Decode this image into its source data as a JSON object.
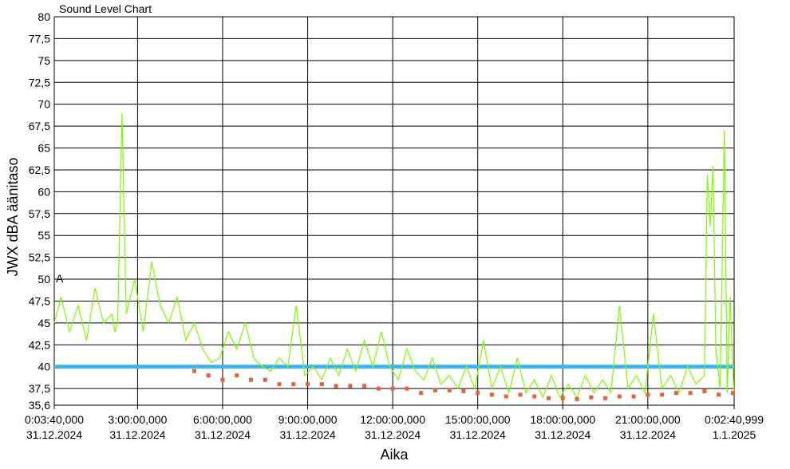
{
  "chart_data": {
    "type": "line",
    "title": "Sound Level Chart",
    "xlabel": "Aika",
    "ylabel": "JWX dBA äänitaso",
    "ylim": [
      35.6,
      80
    ],
    "x_hours_range": [
      0.06111,
      24.04472
    ],
    "y_ticks": [
      "35,6",
      "37,5",
      "40",
      "42,5",
      "45",
      "47,5",
      "50",
      "52,5",
      "55",
      "57,5",
      "60",
      "62,5",
      "65",
      "67,5",
      "70",
      "72,5",
      "75",
      "77,5",
      "80"
    ],
    "y_tick_values": [
      35.6,
      37.5,
      40,
      42.5,
      45,
      47.5,
      50,
      52.5,
      55,
      57.5,
      60,
      62.5,
      65,
      67.5,
      70,
      72.5,
      75,
      77.5,
      80
    ],
    "x_ticks": [
      {
        "hours": 0.06111,
        "time": "0:03:40,000",
        "date": "31.12.2024"
      },
      {
        "hours": 3,
        "time": "3:00:00,000",
        "date": "31.12.2024"
      },
      {
        "hours": 6,
        "time": "6:00:00,000",
        "date": "31.12.2024"
      },
      {
        "hours": 9,
        "time": "9:00:00,000",
        "date": "31.12.2024"
      },
      {
        "hours": 12,
        "time": "12:00:00,000",
        "date": "31.12.2024"
      },
      {
        "hours": 15,
        "time": "15:00:00,000",
        "date": "31.12.2024"
      },
      {
        "hours": 18,
        "time": "18:00:00,000",
        "date": "31.12.2024"
      },
      {
        "hours": 21,
        "time": "21:00:00,000",
        "date": "31.12.2024"
      },
      {
        "hours": 24.04472,
        "time": "0:02:40,999",
        "date": "1.1.2025"
      }
    ],
    "grid": true,
    "reference_line": {
      "y": 40,
      "color": "#40b4e8"
    },
    "series": [
      {
        "color": "#7cfc00",
        "x": [
          0.06,
          0.3,
          0.6,
          0.9,
          1.2,
          1.5,
          1.8,
          2.1,
          2.2,
          2.3,
          2.45,
          2.6,
          2.9,
          3.2,
          3.5,
          3.8,
          4.1,
          4.4,
          4.7,
          5.0,
          5.3,
          5.6,
          5.9,
          6.2,
          6.5,
          6.8,
          7.1,
          7.4,
          7.7,
          8.0,
          8.3,
          8.6,
          8.9,
          9.2,
          9.5,
          9.8,
          10.1,
          10.4,
          10.7,
          11.0,
          11.3,
          11.6,
          11.9,
          12.2,
          12.5,
          12.8,
          13.1,
          13.4,
          13.7,
          14.0,
          14.3,
          14.6,
          14.9,
          15.2,
          15.5,
          15.8,
          16.1,
          16.4,
          16.7,
          17.0,
          17.3,
          17.6,
          17.9,
          18.2,
          18.5,
          18.8,
          19.1,
          19.4,
          19.7,
          20.0,
          20.3,
          20.6,
          20.9,
          21.2,
          21.5,
          21.8,
          22.1,
          22.4,
          22.7,
          23.0,
          23.1,
          23.2,
          23.3,
          23.4,
          23.55,
          23.7,
          23.8,
          23.9,
          24.04
        ],
        "y": [
          45,
          48,
          44,
          47,
          43,
          49,
          45,
          46,
          44,
          45,
          69,
          46,
          50,
          44,
          52,
          47,
          45,
          48,
          43,
          45,
          42,
          40.5,
          41,
          44,
          42,
          45,
          41,
          40,
          39.5,
          41,
          40,
          47,
          39,
          40,
          38.5,
          41,
          39,
          42,
          39.5,
          43,
          40,
          44,
          40,
          38.5,
          42,
          39.5,
          38.5,
          41,
          38,
          39,
          37.5,
          40,
          37.5,
          43,
          37.5,
          40,
          37,
          41,
          37,
          38.5,
          36.5,
          39,
          36.5,
          38,
          36.5,
          39,
          37,
          38.5,
          37,
          47,
          37.5,
          39,
          37,
          46,
          37.5,
          39,
          37,
          40,
          38,
          39,
          62,
          56,
          63,
          42,
          37.5,
          67,
          37,
          48,
          36.8
        ]
      },
      {
        "color": "#e8603c",
        "x": [
          5.0,
          5.5,
          6.0,
          6.5,
          7.0,
          7.5,
          8.0,
          8.5,
          9.0,
          9.5,
          10.0,
          10.5,
          11.0,
          11.5,
          12.0,
          12.5,
          13.0,
          13.5,
          14.0,
          14.5,
          15.0,
          15.5,
          16.0,
          16.5,
          17.0,
          17.5,
          18.0,
          18.5,
          19.0,
          19.5,
          20.0,
          20.5,
          21.0,
          21.5,
          22.0,
          22.5,
          23.0,
          23.5,
          24.0
        ],
        "y": [
          39.5,
          39,
          38.5,
          39,
          38.5,
          38.5,
          38,
          38,
          38,
          38,
          37.8,
          37.8,
          37.8,
          37.5,
          37.5,
          37.5,
          37,
          37.3,
          37.3,
          37.2,
          37,
          36.8,
          36.6,
          36.8,
          36.6,
          36.4,
          36.4,
          36.3,
          36.5,
          36.4,
          36.6,
          36.6,
          36.8,
          36.8,
          37,
          37,
          37.2,
          36.8,
          37
        ]
      }
    ],
    "annotations": [
      "A"
    ]
  }
}
